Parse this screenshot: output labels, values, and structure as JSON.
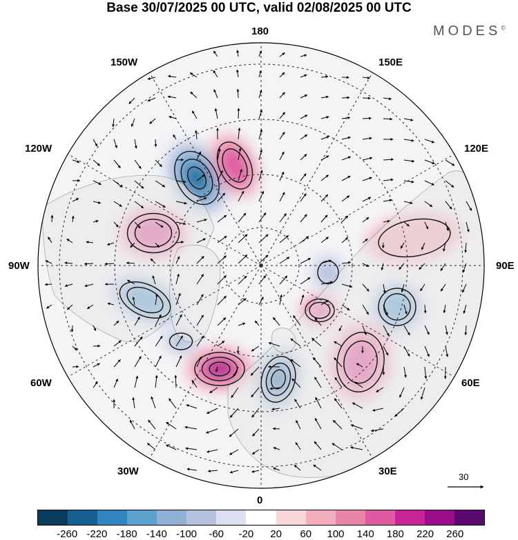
{
  "title": "Base 30/07/2025 00 UTC, valid 02/08/2025 00 UTC",
  "brand": {
    "name": "MODES",
    "mark": "©"
  },
  "longitude_labels": {
    "top": "180",
    "bottom": "0",
    "left": "90W",
    "right": "90E",
    "upper_left": "150W",
    "upper_right": "150E",
    "mid_left_upper": "120W",
    "mid_right_upper": "120E",
    "mid_left_lower": "60W",
    "mid_right_lower": "60E",
    "lower_left": "30W",
    "lower_right": "30E"
  },
  "reference_vector": {
    "value": "30"
  },
  "colorbar": {
    "colors": [
      "#0b3c5c",
      "#165f91",
      "#2f86bf",
      "#5ea3cf",
      "#8fb1d6",
      "#b6c2de",
      "#dcdff0",
      "#ffffff",
      "#f8d6da",
      "#f2aebd",
      "#ea85a8",
      "#df5aa3",
      "#c82397",
      "#9c0d8c",
      "#5c0a70"
    ],
    "ticks": [
      "-260",
      "-220",
      "-180",
      "-140",
      "-100",
      "-60",
      "-20",
      "20",
      "60",
      "100",
      "140",
      "180",
      "220",
      "260"
    ]
  },
  "anomaly_centers": [
    {
      "name": "low-alaska",
      "sign": "negative",
      "intensity": 3
    },
    {
      "name": "high-bering",
      "sign": "positive",
      "intensity": 2
    },
    {
      "name": "high-canada",
      "sign": "positive",
      "intensity": 2
    },
    {
      "name": "low-hudson",
      "sign": "negative",
      "intensity": 2
    },
    {
      "name": "low-labrador",
      "sign": "negative",
      "intensity": 1
    },
    {
      "name": "high-greenland-south",
      "sign": "positive",
      "intensity": 3
    },
    {
      "name": "low-scandinavia",
      "sign": "negative",
      "intensity": 3
    },
    {
      "name": "high-ural",
      "sign": "positive",
      "intensity": 2
    },
    {
      "name": "high-west-siberia",
      "sign": "positive",
      "intensity": 2
    },
    {
      "name": "low-central-siberia",
      "sign": "negative",
      "intensity": 2
    },
    {
      "name": "low-taymyr",
      "sign": "negative",
      "intensity": 1
    },
    {
      "name": "high-east-siberia",
      "sign": "positive",
      "intensity": 1
    }
  ]
}
